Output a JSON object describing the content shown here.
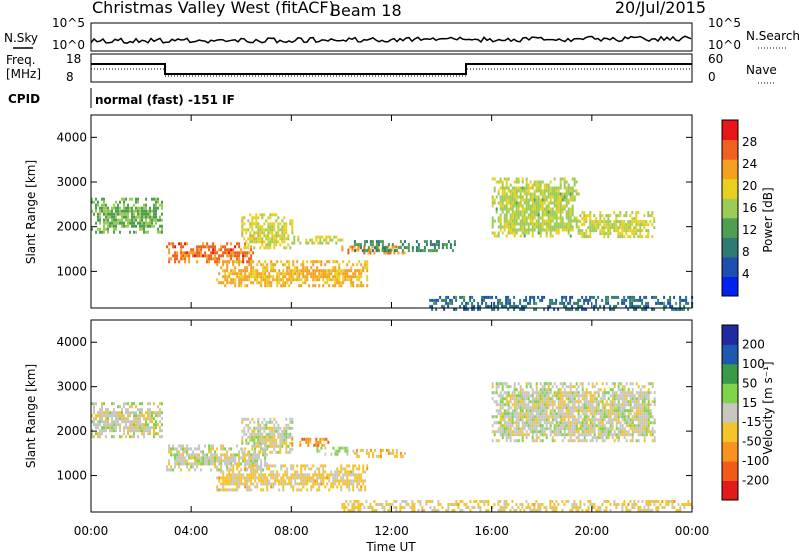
{
  "header": {
    "title": "Christmas Valley West (fitACF)",
    "beam": "Beam 18",
    "date": "20/Jul/2015"
  },
  "param_panels": {
    "nsky": {
      "left_label": "N.Sky",
      "right_label": "N.Search",
      "ticks": [
        "10^5",
        "10^0"
      ]
    },
    "freq": {
      "left_label_lines": [
        "Freq.",
        "[MHz]"
      ],
      "left_ticks": [
        "18",
        "8"
      ],
      "right_label": "Nave",
      "right_ticks": [
        "60",
        "0"
      ]
    },
    "cpid": {
      "label": "CPID",
      "text": "normal (fast) -151 IF"
    }
  },
  "colors": {
    "power_scale": [
      "#0022ee",
      "#1e4fb0",
      "#2f7a72",
      "#4f9e55",
      "#9ccc58",
      "#e8d021",
      "#f4a020",
      "#f06020",
      "#e8161a"
    ],
    "velocity_scale": [
      "#e21a1a",
      "#f25a1a",
      "#f7931e",
      "#f5c42a",
      "#c7c7c0",
      "#7ed348",
      "#3a9a4a",
      "#1e58b0",
      "#202b9f"
    ]
  },
  "chart_data": [
    {
      "type": "heatmap",
      "name": "power",
      "xlabel": "",
      "ylabel": "Slant Range [km]",
      "xlim": [
        0,
        24
      ],
      "ylim": [
        180,
        4500
      ],
      "yticks": [
        "1000",
        "2000",
        "3000",
        "4000"
      ],
      "colorbar": {
        "label": "Power [dB]",
        "ticks": [
          "28",
          "24",
          "20",
          "16",
          "12",
          "8",
          "4"
        ],
        "range": [
          0,
          32
        ]
      },
      "regions": [
        {
          "t0": 0.0,
          "t1": 2.8,
          "r0": 1850,
          "r1": 2650,
          "value": 14
        },
        {
          "t0": 3.0,
          "t1": 6.5,
          "r0": 1180,
          "r1": 1650,
          "value": 26
        },
        {
          "t0": 6.0,
          "t1": 8.0,
          "r0": 1550,
          "r1": 2300,
          "value": 19
        },
        {
          "t0": 5.0,
          "t1": 11.0,
          "r0": 700,
          "r1": 1250,
          "value": 22
        },
        {
          "t0": 8.0,
          "t1": 10.0,
          "r0": 1600,
          "r1": 1800,
          "value": 17
        },
        {
          "t0": 10.0,
          "t1": 12.5,
          "r0": 1380,
          "r1": 1580,
          "value": 24
        },
        {
          "t0": 10.5,
          "t1": 14.5,
          "r0": 1450,
          "r1": 1700,
          "value": 11
        },
        {
          "t0": 16.0,
          "t1": 19.5,
          "r0": 1800,
          "r1": 3100,
          "value": 17
        },
        {
          "t0": 19.5,
          "t1": 22.5,
          "r0": 1800,
          "r1": 2350,
          "value": 18
        },
        {
          "t0": 13.5,
          "t1": 24.0,
          "r0": 180,
          "r1": 450,
          "value": 8
        }
      ]
    },
    {
      "type": "heatmap",
      "name": "velocity",
      "xlabel": "Time UT",
      "ylabel": "Slant Range [km]",
      "xlim": [
        0,
        24
      ],
      "ylim": [
        180,
        4500
      ],
      "xticks": [
        "00:00",
        "04:00",
        "08:00",
        "12:00",
        "16:00",
        "20:00",
        "00:00"
      ],
      "yticks": [
        "1000",
        "2000",
        "3000",
        "4000"
      ],
      "colorbar": {
        "label": "Velocity [m s⁻¹]",
        "ticks": [
          "200",
          "100",
          "50",
          "15",
          "-15",
          "-50",
          "-100",
          "-200"
        ],
        "range": [
          -250,
          250
        ]
      },
      "regions": [
        {
          "t0": 0.0,
          "t1": 2.8,
          "r0": 1850,
          "r1": 2650,
          "value": 0
        },
        {
          "t0": 3.0,
          "t1": 7.0,
          "r0": 1150,
          "r1": 1700,
          "value": 0
        },
        {
          "t0": 6.0,
          "t1": 8.0,
          "r0": 1550,
          "r1": 2300,
          "value": 0
        },
        {
          "t0": 5.0,
          "t1": 11.0,
          "r0": 700,
          "r1": 1250,
          "value": -40
        },
        {
          "t0": 8.0,
          "t1": 9.5,
          "r0": 1650,
          "r1": 1850,
          "value": -120
        },
        {
          "t0": 9.0,
          "t1": 10.5,
          "r0": 1450,
          "r1": 1650,
          "value": 30
        },
        {
          "t0": 10.5,
          "t1": 12.5,
          "r0": 1400,
          "r1": 1600,
          "value": -60
        },
        {
          "t0": 16.0,
          "t1": 22.5,
          "r0": 1800,
          "r1": 3100,
          "value": 0
        },
        {
          "t0": 10.0,
          "t1": 24.0,
          "r0": 180,
          "r1": 450,
          "value": -40
        }
      ]
    }
  ]
}
